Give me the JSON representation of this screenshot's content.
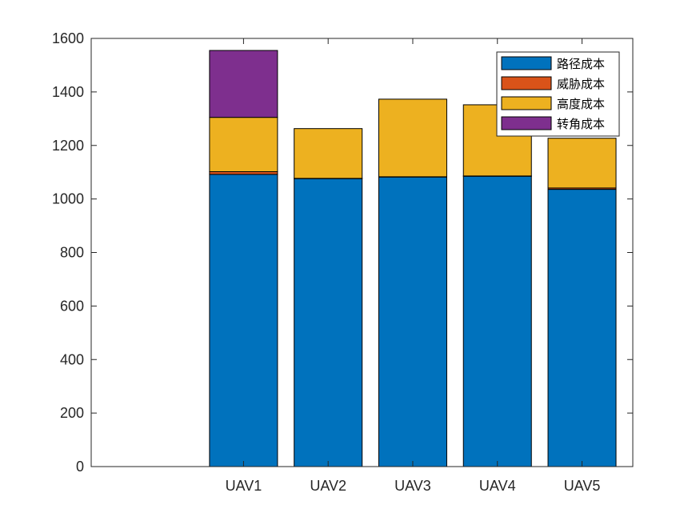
{
  "chart_data": {
    "type": "bar",
    "stacked": true,
    "categories": [
      "UAV1",
      "UAV2",
      "UAV3",
      "UAV4",
      "UAV5"
    ],
    "series": [
      {
        "name": "路径成本",
        "color": "#0072BD",
        "values": [
          1092,
          1076,
          1082,
          1085,
          1036
        ]
      },
      {
        "name": "威胁成本",
        "color": "#D95319",
        "values": [
          10,
          1,
          1,
          1,
          5
        ]
      },
      {
        "name": "高度成本",
        "color": "#EDB120",
        "values": [
          203,
          186,
          290,
          266,
          186
        ]
      },
      {
        "name": "转角成本",
        "color": "#7E2F8E",
        "values": [
          250,
          0,
          0,
          0,
          0
        ]
      }
    ],
    "ylim": [
      0,
      1600
    ],
    "yticks": [
      0,
      200,
      400,
      600,
      800,
      1000,
      1200,
      1400,
      1600
    ],
    "xlim": [
      -0.8,
      5.6
    ],
    "grid": false,
    "legend_position": "top-right"
  }
}
